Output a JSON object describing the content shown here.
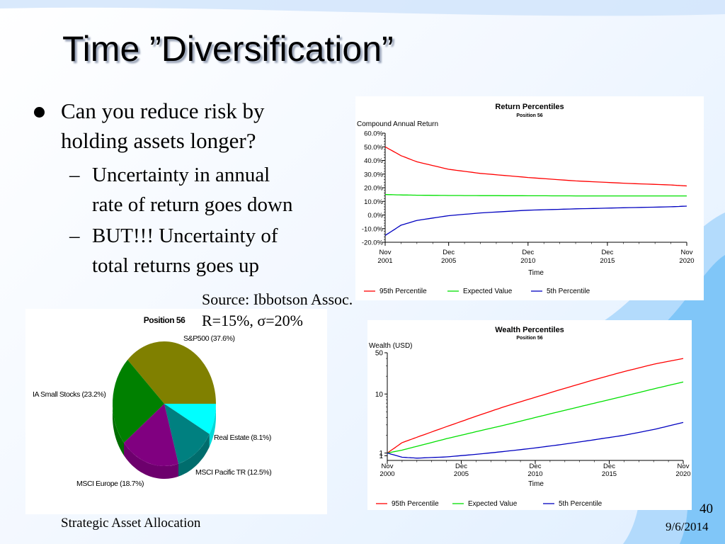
{
  "slide": {
    "title": "Time ”Diversification”",
    "bullet_main_1": "Can you reduce risk by",
    "bullet_main_2": "holding assets longer?",
    "sub1_line1": "Uncertainty in annual",
    "sub1_line2": "rate of return goes down",
    "sub2_line1": "BUT!!! Uncertainty of",
    "sub2_line2": "total returns goes up",
    "dash": "–",
    "source": "Source: Ibbotson Assoc.",
    "params": "R=15%, σ=20%",
    "footer": "Strategic Asset Allocation",
    "slide_number": "40",
    "date": "9/6/2014"
  },
  "chart_data": [
    {
      "type": "line",
      "title": "Return Percentiles",
      "subtitle": "Position 56",
      "ylabel": "Compound Annual Return",
      "xlabel": "Time",
      "ylim": [
        -20,
        60
      ],
      "y_ticks": [
        "60.0%",
        "50.0%",
        "40.0%",
        "30.0%",
        "20.0%",
        "10.0%",
        "0.0%",
        "-10.0%",
        "-20.0%"
      ],
      "x_ticks": [
        [
          "Nov",
          "2001"
        ],
        [
          "Dec",
          "2005"
        ],
        [
          "Dec",
          "2010"
        ],
        [
          "Dec",
          "2015"
        ],
        [
          "Nov",
          "2020"
        ]
      ],
      "x": [
        1,
        2,
        3,
        5,
        7,
        10,
        13,
        16,
        19,
        20
      ],
      "series": [
        {
          "name": "95th Percentile",
          "color": "#ff0000",
          "values": [
            50.0,
            43.5,
            39.0,
            33.5,
            30.5,
            27.5,
            25.0,
            23.3,
            22.0,
            21.3
          ]
        },
        {
          "name": "Expected Value",
          "color": "#00e000",
          "values": [
            15.0,
            14.7,
            14.5,
            14.3,
            14.2,
            14.1,
            14.0,
            14.0,
            14.0,
            14.0
          ]
        },
        {
          "name": "5th Percentile",
          "color": "#0000c0",
          "values": [
            -15.0,
            -7.5,
            -4.0,
            -0.5,
            1.5,
            3.5,
            4.5,
            5.3,
            6.0,
            6.5
          ]
        }
      ],
      "legend": "bottom"
    },
    {
      "type": "line",
      "title": "Wealth Percentiles",
      "subtitle": "Position 56",
      "ylabel": "Wealth (USD)",
      "xlabel": "Time",
      "scale": "log",
      "ylim": [
        0.75,
        50
      ],
      "y_ticks": [
        "50",
        "10",
        "1",
        "1"
      ],
      "x_ticks": [
        [
          "Nov",
          "2000"
        ],
        [
          "Dec",
          "2005"
        ],
        [
          "Dec",
          "2010"
        ],
        [
          "Dec",
          "2015"
        ],
        [
          "Nov",
          "2020"
        ]
      ],
      "x": [
        0,
        1,
        2,
        4,
        6,
        8,
        10,
        12,
        14,
        16,
        18,
        20
      ],
      "series": [
        {
          "name": "95th Percentile",
          "color": "#ff0000",
          "values": [
            1,
            1.5,
            1.85,
            2.8,
            4.2,
            6.2,
            8.8,
            12.5,
            17.5,
            24,
            32,
            40
          ]
        },
        {
          "name": "Expected Value",
          "color": "#00e000",
          "values": [
            1,
            1.12,
            1.3,
            1.75,
            2.3,
            3.0,
            4.0,
            5.3,
            7.0,
            9.2,
            12.2,
            16
          ]
        },
        {
          "name": "5th Percentile",
          "color": "#0000c0",
          "values": [
            1,
            0.85,
            0.82,
            0.86,
            0.95,
            1.07,
            1.22,
            1.42,
            1.68,
            2.0,
            2.5,
            3.3
          ]
        }
      ],
      "legend": "bottom"
    },
    {
      "type": "pie",
      "title": "Position 56",
      "slices": [
        {
          "label": "S&P500 (37.6%)",
          "value": 37.6,
          "color": "#808000"
        },
        {
          "label": "Real Estate (8.1%)",
          "value": 8.1,
          "color": "#00ffff"
        },
        {
          "label": "MSCI Pacific TR (12.5%)",
          "value": 12.5,
          "color": "#008080"
        },
        {
          "label": "MSCI Europe (18.7%)",
          "value": 18.7,
          "color": "#800080"
        },
        {
          "label": "IA Small Stocks (23.2%)",
          "value": 23.2,
          "color": "#008000"
        }
      ]
    }
  ]
}
